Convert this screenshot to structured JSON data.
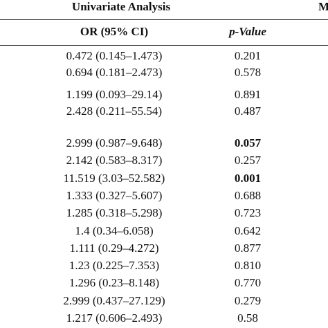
{
  "header": {
    "title": "Univariate Analysis",
    "next": "M",
    "col_or": "OR (95% CI)",
    "col_p": "p-Value"
  },
  "table": {
    "groups": [
      [
        {
          "or": "0.472 (0.145–1.473)",
          "p": "0.201"
        },
        {
          "or": "0.694 (0.181–2.473)",
          "p": "0.578"
        }
      ],
      [
        {
          "or": "1.199 (0.093–29.14)",
          "p": "0.891"
        },
        {
          "or": "2.428 (0.211–55.54)",
          "p": "0.487"
        }
      ],
      [
        {
          "or": "2.999 (0.987–9.648)",
          "p": "0.057",
          "bold": true
        },
        {
          "or": "2.142 (0.583–8.317)",
          "p": "0.257"
        },
        {
          "or": "11.519 (3.03–52.582)",
          "p": "0.001",
          "bold": true
        },
        {
          "or": "1.333 (0.327–5.607)",
          "p": "0.688"
        },
        {
          "or": "1.285 (0.318–5.298)",
          "p": "0.723"
        },
        {
          "or": "1.4 (0.34–6.058)",
          "p": "0.642"
        },
        {
          "or": "1.111 (0.29–4.272)",
          "p": "0.877"
        },
        {
          "or": "1.23 (0.225–7.353)",
          "p": "0.810"
        },
        {
          "or": "1.296 (0.23–8.148)",
          "p": "0.770"
        },
        {
          "or": "2.999 (0.437–27.129)",
          "p": "0.279"
        },
        {
          "or": "1.217 (0.606–2.493)",
          "p": "0.58"
        }
      ]
    ]
  }
}
